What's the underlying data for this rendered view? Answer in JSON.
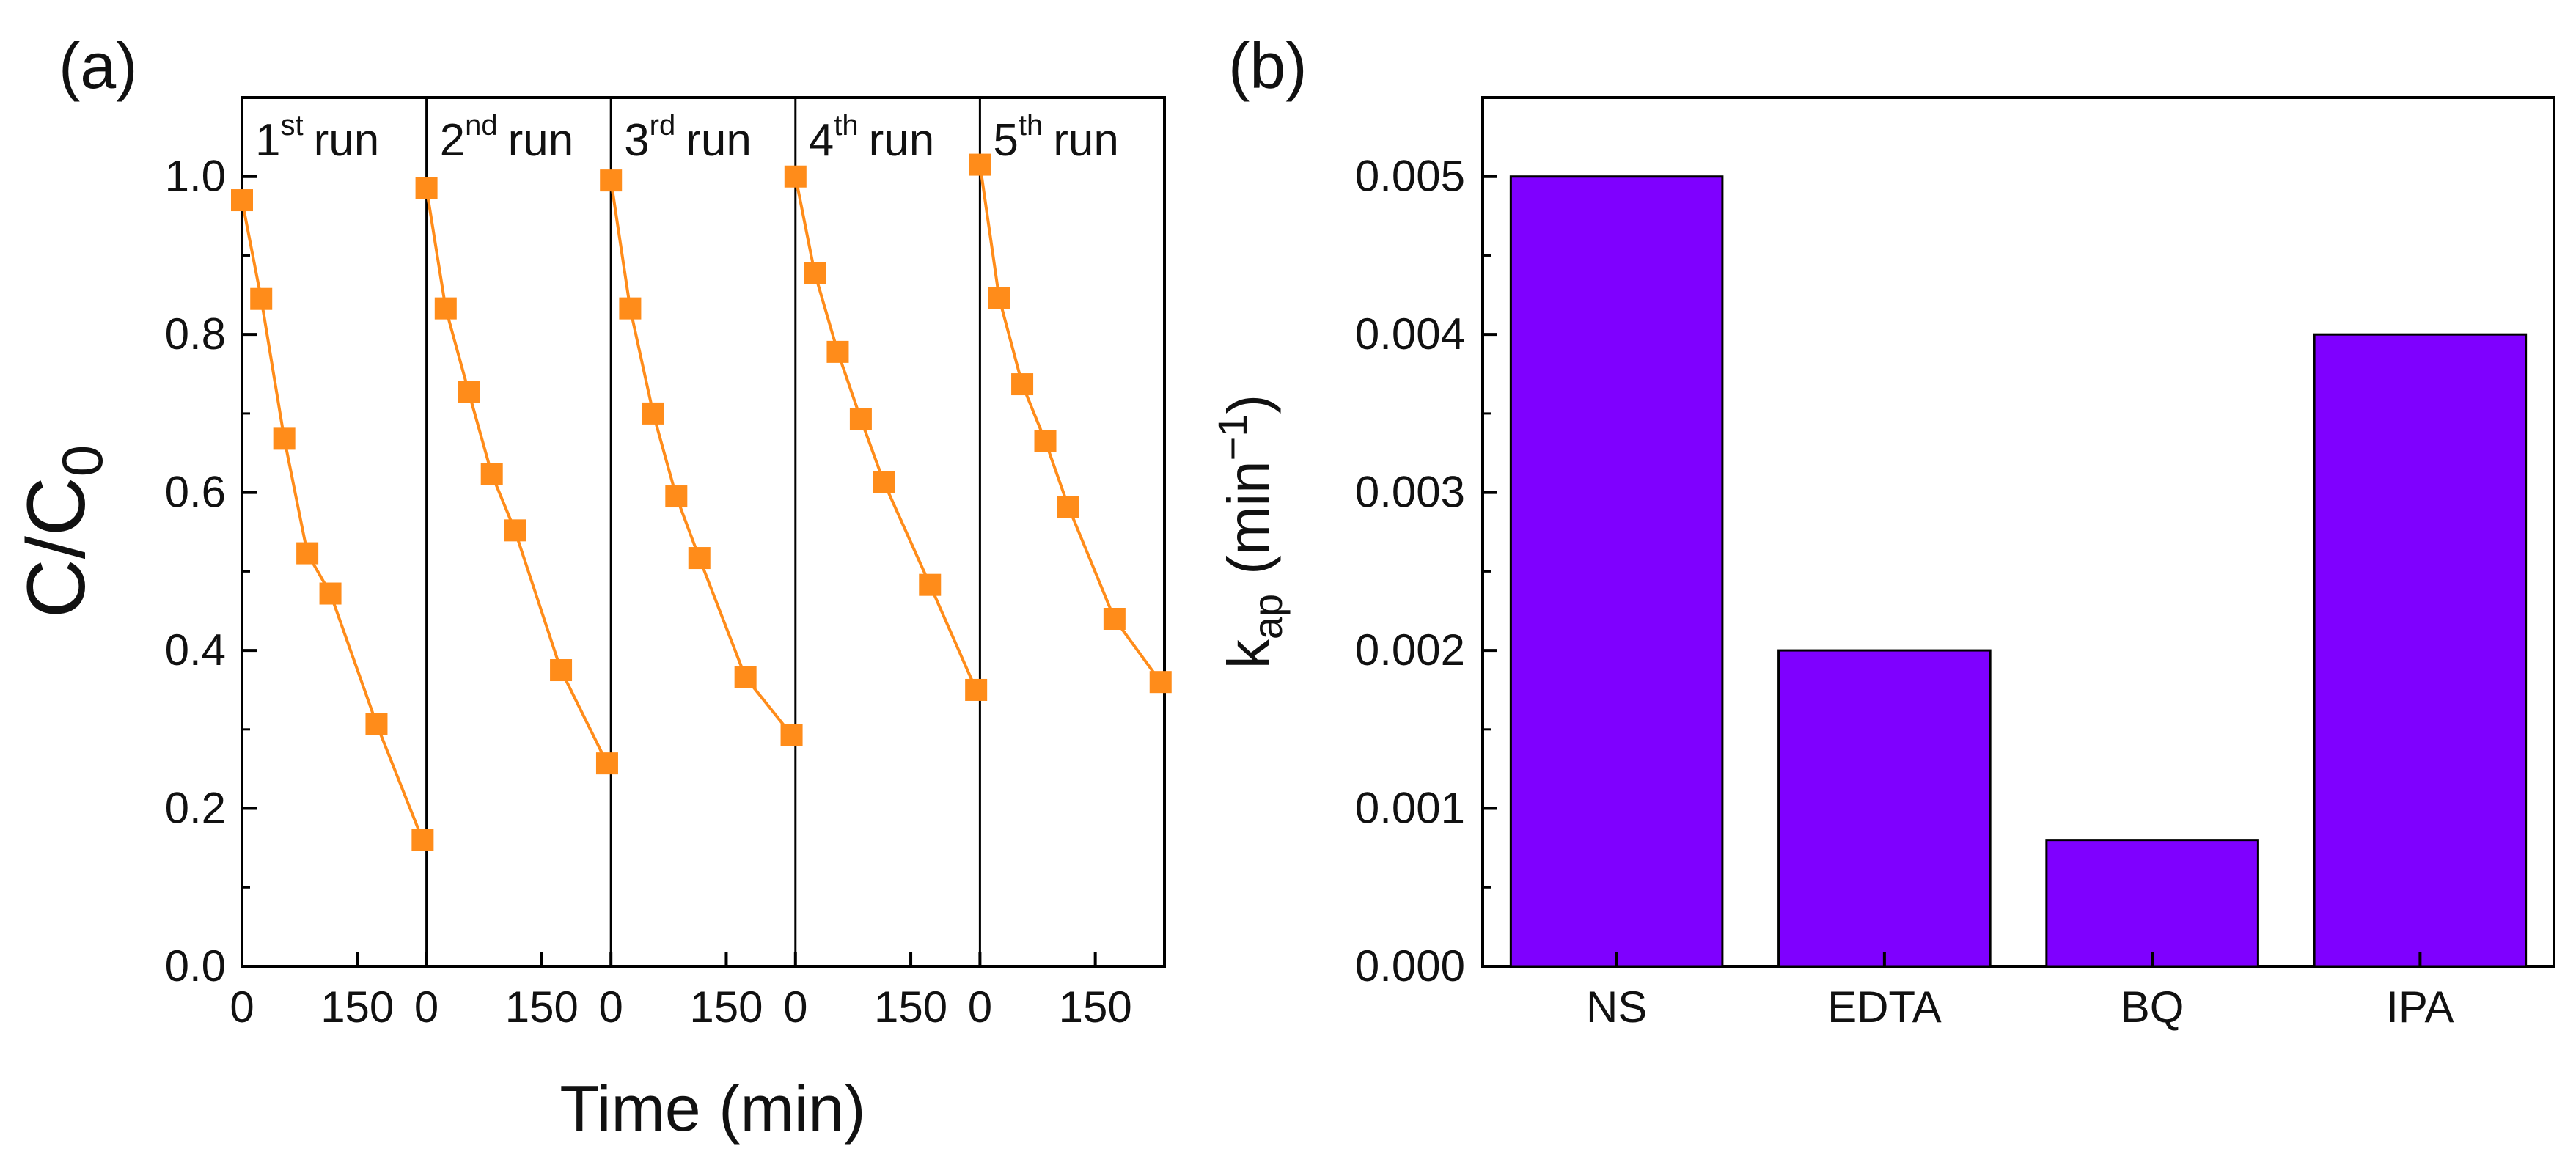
{
  "chart_data": [
    {
      "type": "scatter",
      "panel_label": "(a)",
      "ylabel": {
        "main": "C/C",
        "sub": "0"
      },
      "xlabel": "Time (min)",
      "ylim": [
        0.0,
        1.1
      ],
      "yticks": [
        "0.0",
        "0.2",
        "0.4",
        "0.6",
        "0.8",
        "1.0"
      ],
      "ytick_values": [
        0.0,
        0.2,
        0.4,
        0.6,
        0.8,
        1.0
      ],
      "xlim_per_run": [
        0,
        240
      ],
      "xticks_per_run": {
        "labels": [
          "0",
          "150"
        ],
        "values": [
          0,
          150
        ]
      },
      "marker_color": "#ff8c1a",
      "line_color": "#ff8c1a",
      "runs": [
        {
          "ordinal": "1",
          "sup": "st",
          "word": "run",
          "x": [
            0,
            25,
            55,
            85,
            115,
            175,
            235
          ],
          "y": [
            0.97,
            0.845,
            0.668,
            0.523,
            0.472,
            0.307,
            0.16
          ]
        },
        {
          "ordinal": "2",
          "sup": "nd",
          "word": "run",
          "x": [
            0,
            25,
            55,
            85,
            115,
            175,
            235
          ],
          "y": [
            0.985,
            0.833,
            0.727,
            0.623,
            0.552,
            0.375,
            0.257
          ]
        },
        {
          "ordinal": "3",
          "sup": "rd",
          "word": "run",
          "x": [
            0,
            25,
            55,
            85,
            115,
            175,
            235
          ],
          "y": [
            0.995,
            0.833,
            0.7,
            0.595,
            0.517,
            0.366,
            0.293
          ]
        },
        {
          "ordinal": "4",
          "sup": "th",
          "word": "run",
          "x": [
            0,
            25,
            55,
            85,
            115,
            175,
            235
          ],
          "y": [
            1.0,
            0.878,
            0.778,
            0.693,
            0.613,
            0.483,
            0.35
          ]
        },
        {
          "ordinal": "5",
          "sup": "th",
          "word": "run",
          "x": [
            0,
            25,
            55,
            85,
            115,
            175,
            235
          ],
          "y": [
            1.015,
            0.846,
            0.737,
            0.665,
            0.582,
            0.44,
            0.36
          ]
        }
      ]
    },
    {
      "type": "bar",
      "panel_label": "(b)",
      "categories": [
        "NS",
        "EDTA",
        "BQ",
        "IPA"
      ],
      "values": [
        0.005,
        0.002,
        0.0008,
        0.004
      ],
      "ylabel": {
        "main": "k",
        "sub": "ap",
        "unit_open": "(min",
        "unit_sup": "−1",
        "unit_close": ")"
      },
      "ylim": [
        0.0,
        0.0055
      ],
      "yticks": [
        "0.000",
        "0.001",
        "0.002",
        "0.003",
        "0.004",
        "0.005"
      ],
      "ytick_values": [
        0.0,
        0.001,
        0.002,
        0.003,
        0.004,
        0.005
      ],
      "bar_color": "#7f00ff"
    }
  ]
}
